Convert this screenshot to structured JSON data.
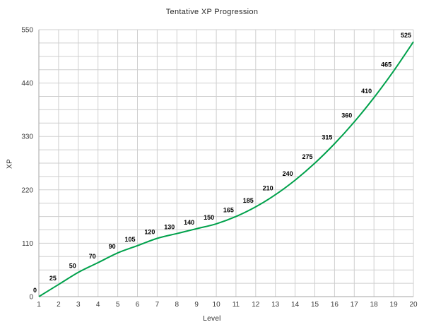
{
  "chart_data": {
    "type": "line",
    "title": "Tentative XP Progression",
    "xlabel": "Level",
    "ylabel": "XP",
    "x": [
      1,
      2,
      3,
      4,
      5,
      6,
      7,
      8,
      9,
      10,
      11,
      12,
      13,
      14,
      15,
      16,
      17,
      18,
      19,
      20
    ],
    "values": [
      0,
      25,
      50,
      70,
      90,
      105,
      120,
      130,
      140,
      150,
      165,
      185,
      210,
      240,
      275,
      315,
      360,
      410,
      465,
      525
    ],
    "ylim": [
      0,
      550
    ],
    "yticks": [
      0,
      110,
      220,
      330,
      440,
      550
    ],
    "y_minor_step": 27.5,
    "grid": true,
    "legend": "none",
    "data_labels": true,
    "colors": {
      "line": "#00A14B",
      "grid": "#CFCFCF",
      "axis": "#A6A6A6",
      "label": "#000000",
      "tick": "#3A3A3A",
      "background": "#FFFFFF"
    }
  }
}
